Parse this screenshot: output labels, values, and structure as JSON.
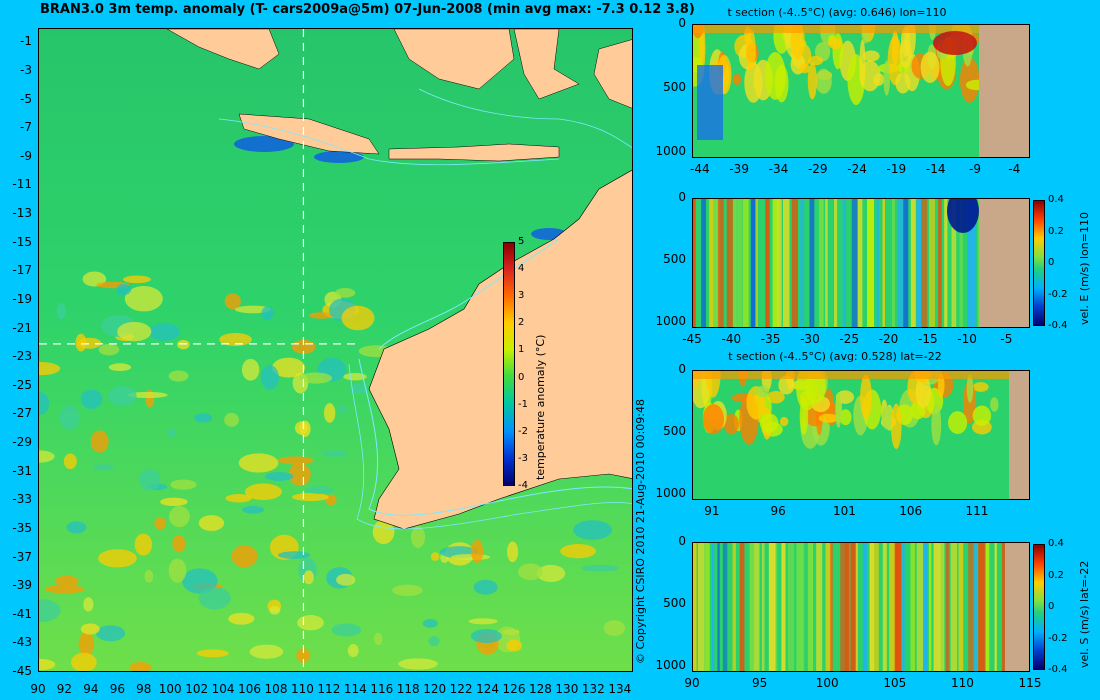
{
  "chart_data": [
    {
      "type": "heatmap",
      "title": "BRAN3.0 3m temp. anomaly (T- cars2009a@5m) 07-Jun-2008 (min avg max: -7.3 0.12 3.8)",
      "x_ticks": [
        "90",
        "92",
        "94",
        "96",
        "98",
        "100",
        "102",
        "104",
        "106",
        "108",
        "110",
        "112",
        "114",
        "116",
        "118",
        "120",
        "122",
        "124",
        "126",
        "128",
        "130",
        "132",
        "134"
      ],
      "y_ticks": [
        "-1",
        "-3",
        "-5",
        "-7",
        "-9",
        "-11",
        "-13",
        "-15",
        "-17",
        "-19",
        "-21",
        "-23",
        "-25",
        "-27",
        "-29",
        "-31",
        "-33",
        "-35",
        "-37",
        "-39",
        "-41",
        "-43",
        "-45"
      ],
      "xlim": [
        90,
        135
      ],
      "ylim": [
        -45,
        0
      ],
      "colorbar": {
        "label": "temperature anomaly (°C)",
        "ticks": [
          "5",
          "4",
          "3",
          "2",
          "1",
          "0",
          "-1",
          "-2",
          "-3",
          "-4"
        ],
        "range": [
          -4,
          5
        ]
      },
      "section_lines": {
        "lon": 110,
        "lat": -22
      },
      "stats": {
        "min": -7.3,
        "avg": 0.12,
        "max": 3.8
      }
    },
    {
      "type": "heatmap",
      "title": "t section (-4..5°C) (avg: 0.646) lon=110",
      "x_ticks": [
        "-44",
        "-39",
        "-34",
        "-29",
        "-24",
        "-19",
        "-14",
        "-9",
        "-4"
      ],
      "y_ticks": [
        "0",
        "500",
        "1000"
      ],
      "xlim": [
        -45,
        -2
      ],
      "ylim": [
        1050,
        0
      ],
      "avg": 0.646
    },
    {
      "type": "heatmap",
      "title": "",
      "x_ticks": [
        "-45",
        "-40",
        "-35",
        "-30",
        "-25",
        "-20",
        "-15",
        "-10",
        "-5"
      ],
      "y_ticks": [
        "0",
        "500",
        "1000"
      ],
      "xlim": [
        -45,
        -2
      ],
      "ylim": [
        1050,
        0
      ],
      "colorbar": {
        "label": "vel. E (m/s) lon=110",
        "ticks": [
          "0.4",
          "0.2",
          "0",
          "-0.2",
          "-0.4"
        ],
        "range": [
          -0.4,
          0.4
        ]
      }
    },
    {
      "type": "heatmap",
      "title": "t section (-4..5°C) (avg: 0.528) lat=-22",
      "x_ticks": [
        "91",
        "96",
        "101",
        "106",
        "111"
      ],
      "y_ticks": [
        "0",
        "500",
        "1000"
      ],
      "xlim": [
        89.5,
        115
      ],
      "ylim": [
        1050,
        0
      ],
      "avg": 0.528
    },
    {
      "type": "heatmap",
      "title": "",
      "x_ticks": [
        "90",
        "95",
        "100",
        "105",
        "110",
        "115"
      ],
      "y_ticks": [
        "0",
        "500",
        "1000"
      ],
      "xlim": [
        90,
        115
      ],
      "ylim": [
        1050,
        0
      ],
      "colorbar": {
        "label": "vel. S (m/s) lat=-22",
        "ticks": [
          "0.4",
          "0.2",
          "0",
          "-0.2",
          "-0.4"
        ],
        "range": [
          -0.4,
          0.4
        ]
      }
    }
  ],
  "copyright": "© Copyright CSIRO 2010   21-Aug-2010 00:09:48",
  "colors": {
    "background": "#00c8ff",
    "ocean": "#2bd16a",
    "land": "#ffcc99",
    "section_land": "#c8a888",
    "contour": "#7fe8ff"
  }
}
